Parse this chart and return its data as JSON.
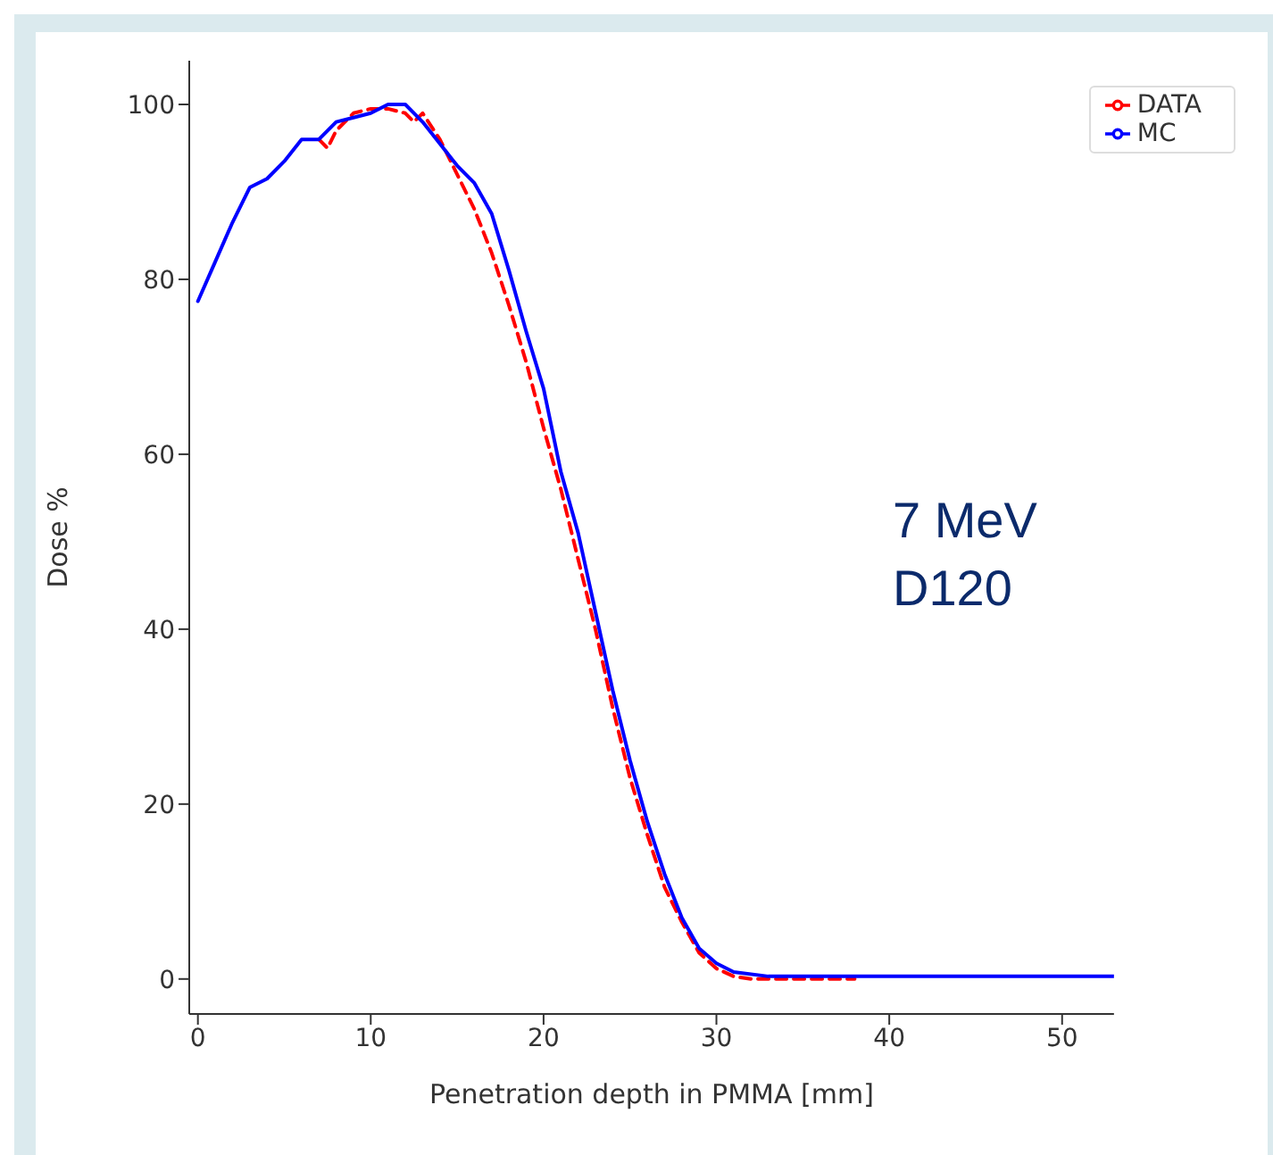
{
  "chart_data": {
    "type": "line",
    "xlabel": "Penetration depth in PMMA [mm]",
    "ylabel": "Dose %",
    "annotations": [
      "7 MeV\nD120"
    ],
    "xlim": [
      -0.5,
      53
    ],
    "xticks": [
      0,
      10,
      20,
      30,
      40,
      50
    ],
    "ylim": [
      -4,
      105
    ],
    "yticks": [
      0,
      20,
      40,
      60,
      80,
      100
    ],
    "grid": false,
    "legend": "top right",
    "marker": "none",
    "series": [
      {
        "name": "DATA",
        "color": "#ff0000",
        "line_style": "dashed",
        "x": [
          7,
          7.5,
          8,
          9,
          10,
          11,
          12,
          12.5,
          13,
          14,
          15,
          16,
          17,
          18,
          19,
          20,
          21,
          22,
          23,
          24,
          25,
          26,
          27,
          28,
          29,
          30,
          31,
          32,
          35,
          38
        ],
        "values": [
          96,
          95,
          97,
          99,
          99.5,
          99.5,
          99,
          98,
          99,
          96,
          92,
          88,
          83,
          77,
          70.5,
          63,
          56,
          48,
          40,
          31,
          23,
          16.5,
          10.5,
          6.5,
          3,
          1.2,
          0.3,
          0,
          0,
          0
        ]
      },
      {
        "name": "MC",
        "color": "#0000ff",
        "line_style": "solid",
        "x": [
          0,
          1,
          2,
          3,
          4,
          5,
          6,
          7,
          8,
          9,
          10,
          11,
          12,
          13,
          14,
          15,
          16,
          17,
          18,
          19,
          20,
          21,
          22,
          23,
          24,
          25,
          26,
          27,
          28,
          29,
          30,
          31,
          33,
          40,
          53
        ],
        "values": [
          77.5,
          82,
          86.5,
          90.5,
          91.5,
          93.5,
          96,
          96,
          98,
          98.5,
          99,
          100,
          100,
          98,
          95.5,
          93,
          91,
          87.5,
          81,
          74,
          67.5,
          58,
          51,
          42,
          33,
          25,
          18,
          12,
          7,
          3.5,
          1.8,
          0.8,
          0.3,
          0.3,
          0.3
        ]
      }
    ]
  }
}
